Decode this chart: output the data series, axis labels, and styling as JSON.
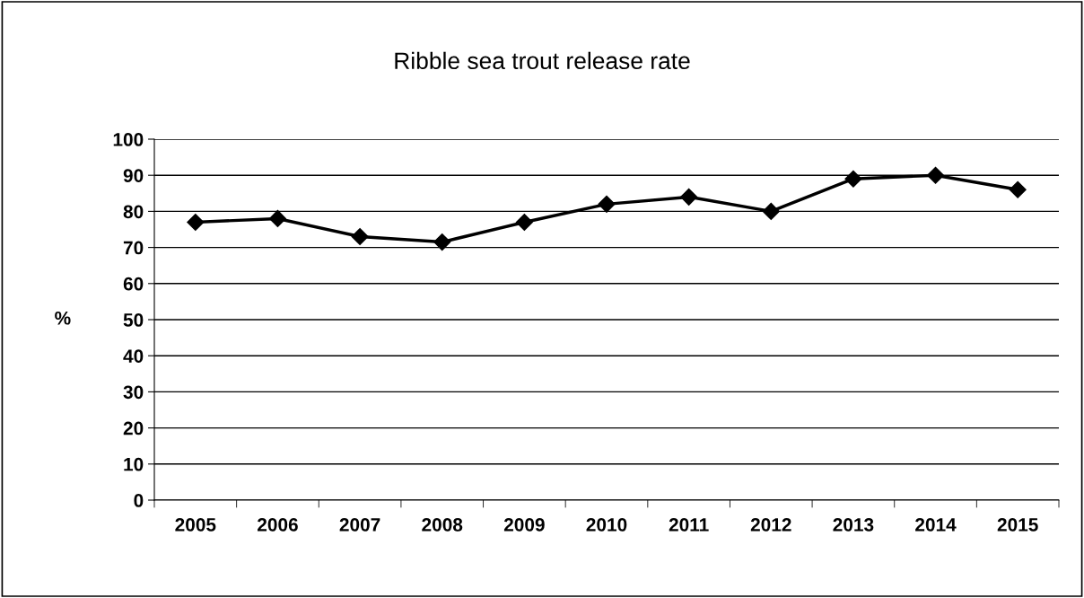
{
  "chart_data": {
    "type": "line",
    "title": "Ribble sea trout release rate",
    "ylabel": "%",
    "categories": [
      "2005",
      "2006",
      "2007",
      "2008",
      "2009",
      "2010",
      "2011",
      "2012",
      "2013",
      "2014",
      "2015"
    ],
    "series": [
      {
        "color": "#000000",
        "values": [
          77,
          78,
          73,
          71.5,
          77,
          82,
          84,
          80,
          89,
          90,
          86
        ]
      }
    ],
    "ylim": [
      0,
      100
    ],
    "yticks": [
      0,
      10,
      20,
      30,
      40,
      50,
      60,
      70,
      80,
      90,
      100
    ],
    "grid": "y",
    "legend": false,
    "marker": "diamond",
    "line_style": "solid"
  }
}
